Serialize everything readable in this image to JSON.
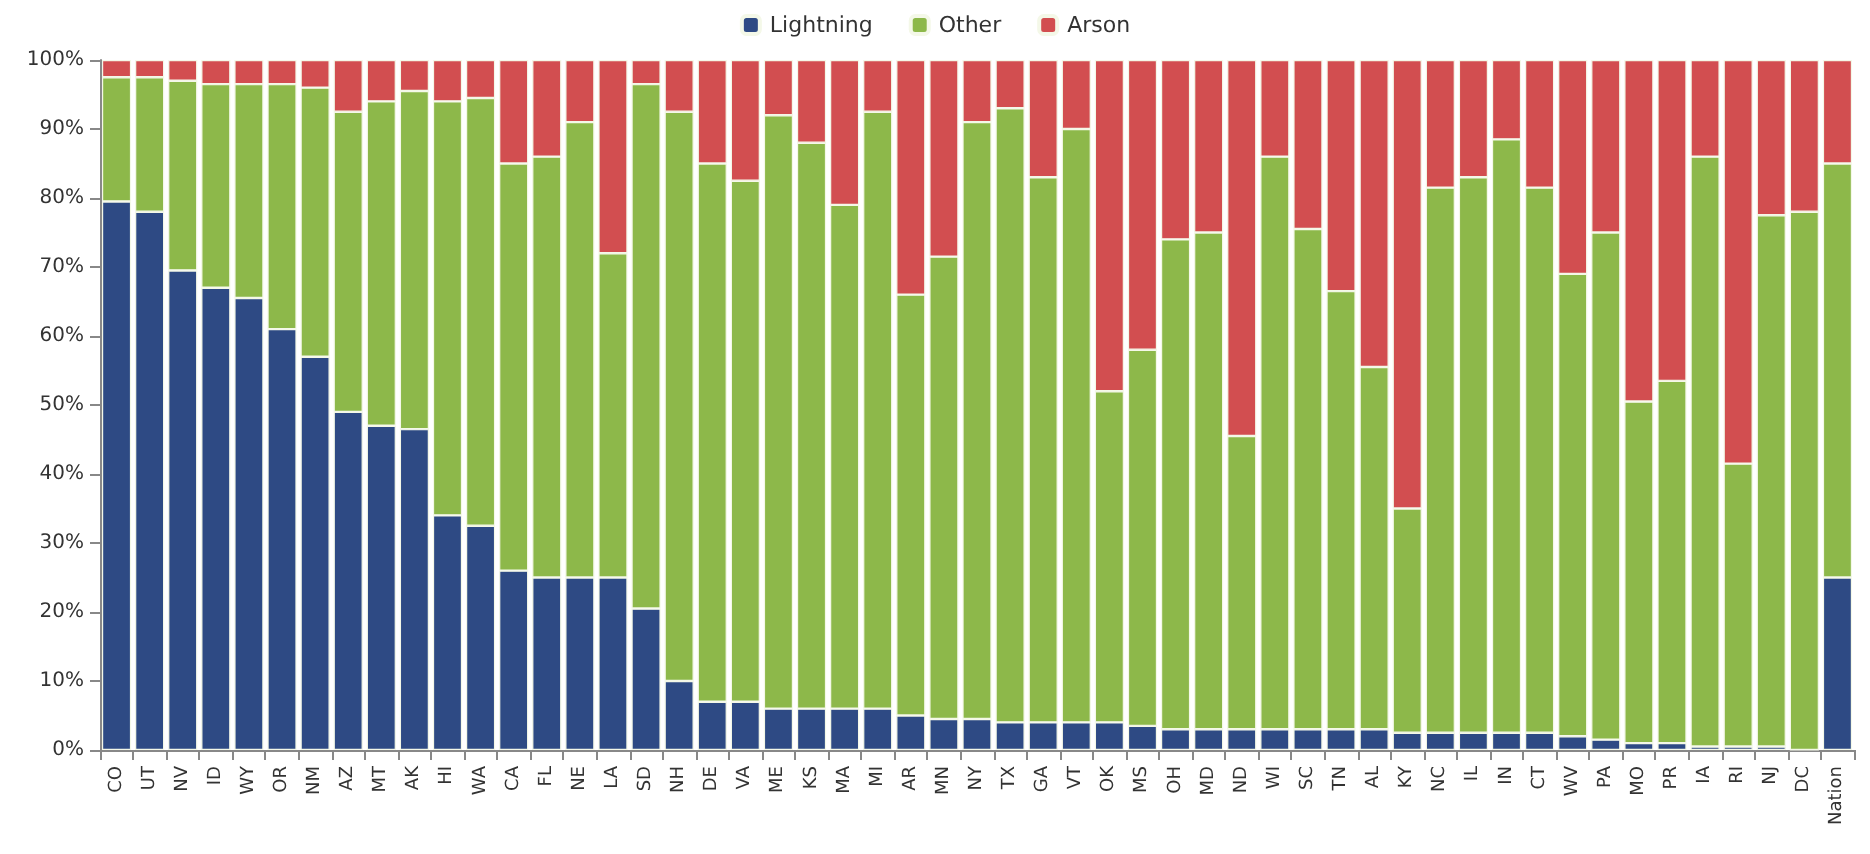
{
  "chart_data": {
    "type": "bar",
    "stacked": true,
    "legend": "top",
    "grid": false,
    "categories": [
      "CO",
      "UT",
      "NV",
      "ID",
      "WY",
      "OR",
      "NM",
      "AZ",
      "MT",
      "AK",
      "HI",
      "WA",
      "CA",
      "FL",
      "NE",
      "LA",
      "SD",
      "NH",
      "DE",
      "VA",
      "ME",
      "KS",
      "MA",
      "MI",
      "AR",
      "MN",
      "NY",
      "TX",
      "GA",
      "VT",
      "OK",
      "MS",
      "OH",
      "MD",
      "ND",
      "WI",
      "SC",
      "TN",
      "AL",
      "KY",
      "NC",
      "IL",
      "IN",
      "CT",
      "WV",
      "PA",
      "MO",
      "PR",
      "IA",
      "RI",
      "NJ",
      "DC",
      "Nation"
    ],
    "series": [
      {
        "name": "Lightning",
        "color": "#2e4a84",
        "values": [
          79.5,
          78,
          69.5,
          67,
          65.5,
          61,
          57,
          49,
          47,
          46.5,
          34,
          32.5,
          26,
          25,
          25,
          25,
          20.5,
          10,
          7,
          7,
          6,
          6,
          6,
          6,
          5,
          4.5,
          4.5,
          4,
          4,
          4,
          4,
          3.5,
          3,
          3,
          3,
          3,
          3,
          3,
          3,
          2.5,
          2.5,
          2.5,
          2.5,
          2.5,
          2,
          1.5,
          1,
          1,
          0.5,
          0.5,
          0.5,
          0,
          25
        ]
      },
      {
        "name": "Other",
        "color": "#8db84a",
        "values": [
          18,
          19.5,
          27.5,
          29.5,
          31,
          35.5,
          39,
          43.5,
          47,
          49,
          60,
          62,
          59,
          61,
          66,
          47,
          76,
          82.5,
          78,
          75.5,
          86,
          82,
          73,
          86.5,
          61,
          67,
          86.5,
          89,
          79,
          86,
          48,
          54.5,
          71,
          72,
          42.5,
          83,
          72.5,
          63.5,
          52.5,
          32.5,
          79,
          80.5,
          86,
          79,
          67,
          73.5,
          49.5,
          52.5,
          85.5,
          41,
          77,
          78,
          60
        ]
      },
      {
        "name": "Arson",
        "color": "#d24e50",
        "values": [
          2.5,
          2.5,
          3,
          3.5,
          3.5,
          3.5,
          4,
          7.5,
          6,
          4.5,
          6,
          5.5,
          15,
          14,
          9,
          28,
          3.5,
          7.5,
          15,
          17.5,
          8,
          12,
          21,
          7.5,
          34,
          28.5,
          9,
          7,
          17,
          10,
          48,
          42,
          26,
          25,
          54.5,
          14,
          24.5,
          33.5,
          44.5,
          65,
          18.5,
          17,
          11.5,
          18.5,
          31,
          25,
          49.5,
          46.5,
          14,
          58.5,
          22.5,
          22,
          15
        ]
      }
    ],
    "ylim": [
      0,
      100
    ],
    "yticks": [
      {
        "value": 0,
        "label": "0%"
      },
      {
        "value": 10,
        "label": "10%"
      },
      {
        "value": 20,
        "label": "20%"
      },
      {
        "value": 30,
        "label": "30%"
      },
      {
        "value": 40,
        "label": "40%"
      },
      {
        "value": 50,
        "label": "50%"
      },
      {
        "value": 60,
        "label": "60%"
      },
      {
        "value": 70,
        "label": "70%"
      },
      {
        "value": 80,
        "label": "80%"
      },
      {
        "value": 90,
        "label": "90%"
      },
      {
        "value": 100,
        "label": "100%"
      }
    ]
  }
}
